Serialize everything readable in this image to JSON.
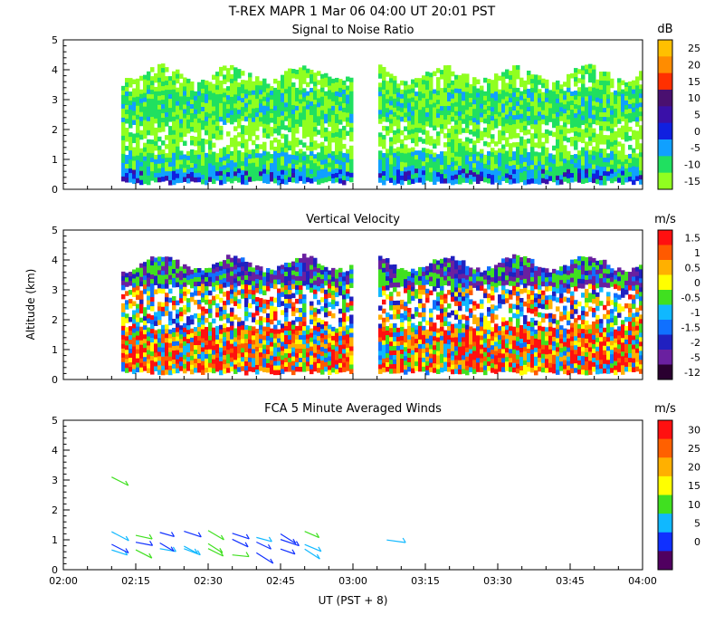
{
  "figure": {
    "title": "T-REX   MAPR   1 Mar 06   04:00 UT   20:01   PST",
    "xlabel": "UT  (PST + 8)",
    "ylabel": "Altitude (km)"
  },
  "chart_data": [
    {
      "type": "heatmap",
      "title": "Signal to Noise Ratio",
      "units": "dB",
      "x_ticks": [
        "02:00",
        "02:15",
        "02:30",
        "02:45",
        "03:00",
        "03:15",
        "03:30",
        "03:45",
        "04:00"
      ],
      "y_ticks": [
        "0",
        "1",
        "2",
        "3",
        "4",
        "5"
      ],
      "ylim": [
        0,
        5
      ],
      "colorbar_labels": [
        "25",
        "20",
        "15",
        "10",
        "5",
        "0",
        "-5",
        "-10",
        "-15"
      ],
      "data_gap_ut": [
        "03:00",
        "03:05"
      ],
      "data_start_ut": "02:12"
    },
    {
      "type": "heatmap",
      "title": "Vertical Velocity",
      "units": "m/s",
      "x_ticks": [
        "02:00",
        "02:15",
        "02:30",
        "02:45",
        "03:00",
        "03:15",
        "03:30",
        "03:45",
        "04:00"
      ],
      "y_ticks": [
        "0",
        "1",
        "2",
        "3",
        "4",
        "5"
      ],
      "ylim": [
        0,
        5
      ],
      "colorbar_labels": [
        "1.5",
        "1",
        "0.5",
        "0",
        "-0.5",
        "-1",
        "-1.5",
        "-2",
        "-5",
        "-12"
      ]
    },
    {
      "type": "scatter",
      "title": "FCA 5 Minute Averaged Winds",
      "units": "m/s",
      "x_ticks": [
        "02:00",
        "02:15",
        "02:30",
        "02:45",
        "03:00",
        "03:15",
        "03:30",
        "03:45",
        "04:00"
      ],
      "y_ticks": [
        "0",
        "1",
        "2",
        "3",
        "4",
        "5"
      ],
      "ylim": [
        0,
        5
      ],
      "colorbar_labels": [
        "30",
        "25",
        "20",
        "15",
        "10",
        "5",
        "0"
      ],
      "wind_barb_times_ut": [
        "02:10",
        "02:15",
        "02:20",
        "02:25",
        "02:30",
        "02:35",
        "02:40",
        "02:45",
        "02:50",
        "03:07"
      ],
      "wind_barb_altitudes_km": [
        0.6,
        0.9,
        1.2,
        3.0
      ]
    }
  ],
  "colors": {
    "snr": [
      "#ffc000",
      "#ff8c00",
      "#ff3000",
      "#4a1070",
      "#3a10a8",
      "#1020e0",
      "#10a0ff",
      "#20e060",
      "#90ff20"
    ],
    "vv": [
      "#ff1010",
      "#ff5a00",
      "#ffb000",
      "#ffff00",
      "#40e020",
      "#10b8ff",
      "#1070ff",
      "#2020c0",
      "#6a20a0",
      "#2a0030"
    ],
    "winds": [
      "#ff1010",
      "#ff6000",
      "#ffb000",
      "#ffff00",
      "#40e020",
      "#10b8ff",
      "#1030ff",
      "#500060"
    ]
  }
}
